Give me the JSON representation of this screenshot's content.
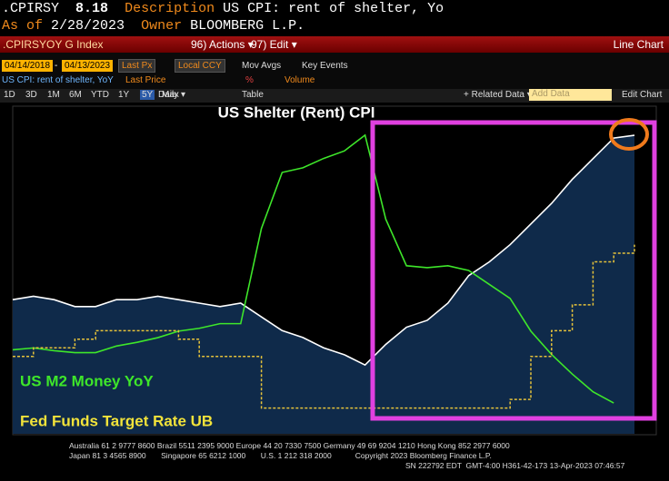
{
  "header": {
    "ticker": ".CPIRSY",
    "last": 8.18,
    "description_label": "Description",
    "description": "US CPI: rent of shelter, Yo",
    "asof_label": "As of",
    "asof": "2/28/2023",
    "owner_label": "Owner",
    "owner": "BLOOMBERG L.P."
  },
  "menu": {
    "security": ".CPIRSYOY G Index",
    "actions": "96) Actions ▾",
    "edit": "97) Edit ▾",
    "view": "Line Chart"
  },
  "controls": {
    "start": "04/14/2018",
    "dash": "-",
    "end": "04/13/2023",
    "field": "Last Px",
    "currency": "Local CCY",
    "mov_avgs": "Mov Avgs",
    "key_events": "Key Events",
    "security_desc": "US CPI: rent of shelter, YoY",
    "price_label": "Last Price",
    "pct": "%",
    "volume": "Volume"
  },
  "toolbar": {
    "periods": [
      "1D",
      "3D",
      "1M",
      "6M",
      "YTD",
      "1Y",
      "5Y",
      "Max"
    ],
    "frequency": "Daily ▾",
    "table": "Table",
    "related": "+ Related Data ▾",
    "add_data": "Add Data",
    "edit_chart": "Edit Chart"
  },
  "chart_data": {
    "type": "line",
    "title": "US Shelter (Rent) CPI",
    "ylim": [
      -5,
      30
    ],
    "y2lim": [
      -0.5,
      9
    ],
    "series": [
      {
        "name": "US Shelter (Rent) CPI",
        "color": "#ffffff",
        "axis": "y2",
        "area": "#0f2a4a",
        "values": [
          3.4,
          3.5,
          3.4,
          3.2,
          3.2,
          3.4,
          3.4,
          3.5,
          3.4,
          3.3,
          3.2,
          3.3,
          2.9,
          2.5,
          2.3,
          2.0,
          1.8,
          1.5,
          2.1,
          2.6,
          2.8,
          3.3,
          4.1,
          4.5,
          5.0,
          5.6,
          6.2,
          6.9,
          7.5,
          8.1,
          8.18
        ]
      },
      {
        "name": "US M2 Money YoY",
        "color": "#3ee62a",
        "values": [
          4.0,
          4.2,
          3.9,
          3.7,
          3.7,
          4.4,
          4.8,
          5.3,
          6.0,
          6.3,
          6.8,
          6.8,
          17.0,
          23.0,
          23.5,
          24.5,
          25.3,
          27.0,
          18.0,
          13.0,
          12.8,
          13.0,
          12.5,
          11.0,
          9.5,
          6.0,
          3.5,
          1.4,
          -0.5,
          -1.7,
          null
        ]
      },
      {
        "name": "Fed Funds Target Rate UB",
        "color": "#e6c23a",
        "axis": "y2",
        "step": true,
        "values": [
          1.75,
          2.0,
          2.0,
          2.25,
          2.5,
          2.5,
          2.5,
          2.5,
          2.25,
          1.75,
          1.75,
          1.75,
          0.25,
          0.25,
          0.25,
          0.25,
          0.25,
          0.25,
          0.25,
          0.25,
          0.25,
          0.25,
          0.25,
          0.25,
          0.5,
          1.75,
          2.5,
          3.25,
          4.5,
          4.75,
          5.0
        ]
      }
    ]
  },
  "footer": {
    "line1": "Australia 61 2 9777 8600 Brazil 5511 2395 9000 Europe 44 20 7330 7500 Germany 49 69 9204 1210 Hong Kong 852 2977 6000",
    "line2": "Japan 81 3 4565 8900       Singapore 65 6212 1000       U.S. 1 212 318 2000           Copyright 2023 Bloomberg Finance L.P.",
    "line3": "SN 222792 EDT  GMT-4:00 H361-42-173 13-Apr-2023 07:46:57"
  }
}
